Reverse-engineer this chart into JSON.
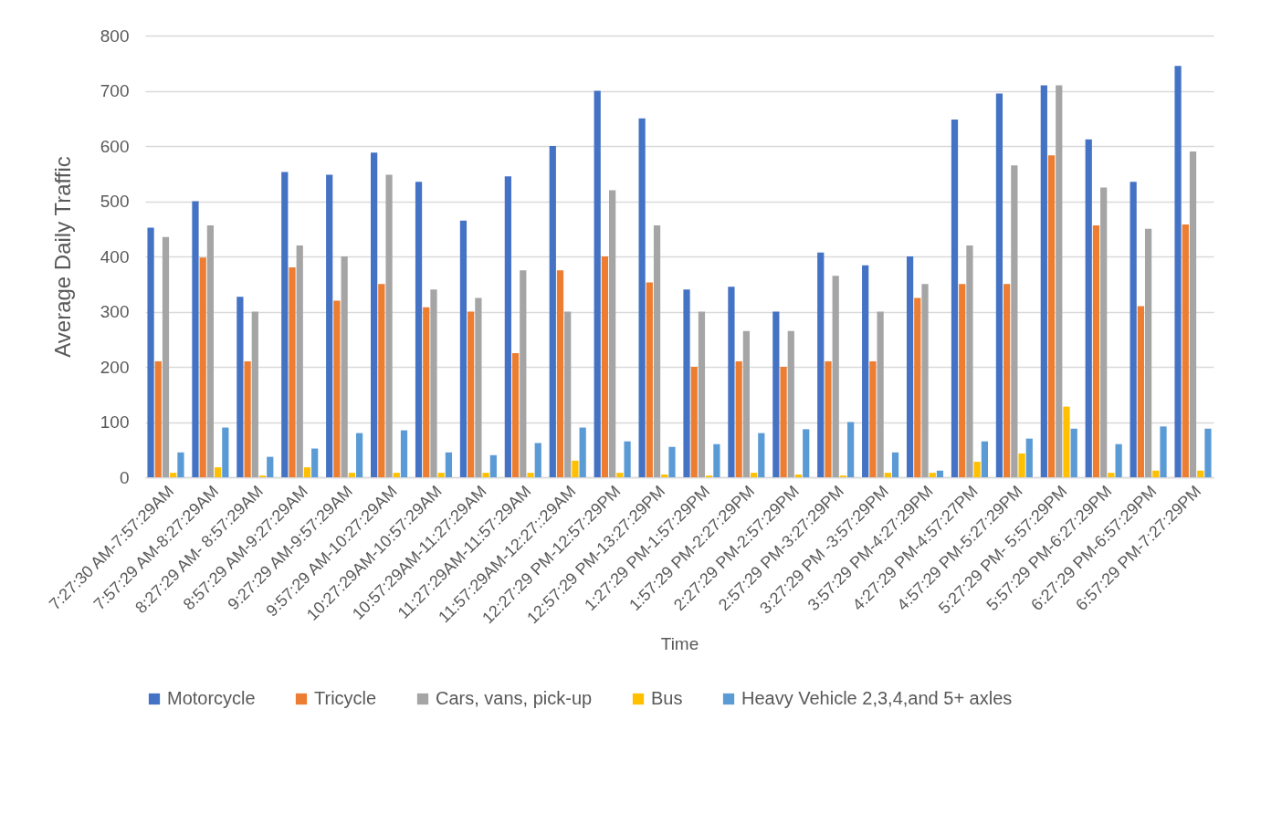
{
  "chart_data": {
    "type": "bar",
    "xlabel": "Time",
    "ylabel": "Average Daily Traffic",
    "categories": [
      "7:27:30 AM-7:57:29AM",
      "7:57:29 AM-8:27:29AM",
      "8:27:29 AM- 8:57:29AM",
      "8:57:29 AM-9:27:29AM",
      "9:27:29 AM-9:57:29AM",
      "9:57:29 AM-10:27:29AM",
      "10:27:29AM-10:57:29AM",
      "10:57:29AM-11:27:29AM",
      "11:27:29AM-11:57:29AM",
      "11:57:29AM-12:27::29AM",
      "12:27:29 PM-12:57:29PM",
      "12:57:29 PM-13:27:29PM",
      "1:27:29 PM-1:57:29PM",
      "1:57:29 PM-2:27:29PM",
      "2:27:29 PM-2:57:29PM",
      "2:57:29 PM-3:27:29PM",
      "3:27:29 PM -3:57:29PM",
      "3:57:29 PM-4:27:29PM",
      "4:27:29 PM-4:57:27PM",
      "4:57:29 PM-5:27:29PM",
      "5:27:29 PM- 5:57:29PM",
      "5:57:29 PM-6:27:29PM",
      "6:27:29 PM-6:57:29PM",
      "6:57:29 PM-7:27:29PM"
    ],
    "series": [
      {
        "name": "Motorcycle",
        "color": "#4472c4",
        "values": [
          452,
          500,
          327,
          553,
          548,
          588,
          535,
          465,
          545,
          600,
          700,
          650,
          340,
          345,
          300,
          407,
          384,
          400,
          648,
          695,
          710,
          612,
          535,
          745
        ]
      },
      {
        "name": "Tricycle",
        "color": "#ed7d31",
        "values": [
          210,
          398,
          210,
          380,
          320,
          350,
          308,
          300,
          225,
          375,
          400,
          353,
          200,
          210,
          200,
          210,
          210,
          325,
          350,
          350,
          583,
          456,
          310,
          458
        ]
      },
      {
        "name": "Cars, vans, pick-up",
        "color": "#a5a5a5",
        "values": [
          435,
          456,
          300,
          420,
          400,
          548,
          340,
          325,
          375,
          300,
          520,
          456,
          300,
          265,
          265,
          365,
          300,
          350,
          420,
          565,
          710,
          525,
          450,
          590
        ]
      },
      {
        "name": "Bus",
        "color": "#ffc000",
        "values": [
          8,
          18,
          3,
          18,
          8,
          8,
          8,
          8,
          8,
          30,
          8,
          5,
          3,
          8,
          5,
          3,
          8,
          8,
          28,
          43,
          128,
          8,
          12,
          12
        ]
      },
      {
        "name": "Heavy Vehicle 2,3,4,and 5+ axles",
        "color": "#5b9bd5",
        "values": [
          45,
          90,
          37,
          52,
          80,
          85,
          45,
          40,
          62,
          90,
          65,
          55,
          60,
          80,
          87,
          100,
          45,
          12,
          65,
          70,
          88,
          60,
          92,
          88
        ]
      }
    ],
    "ylim": [
      0,
      800
    ],
    "yticks": [
      0,
      100,
      200,
      300,
      400,
      500,
      600,
      700,
      800
    ],
    "grid": "y",
    "legend": "bottom"
  }
}
